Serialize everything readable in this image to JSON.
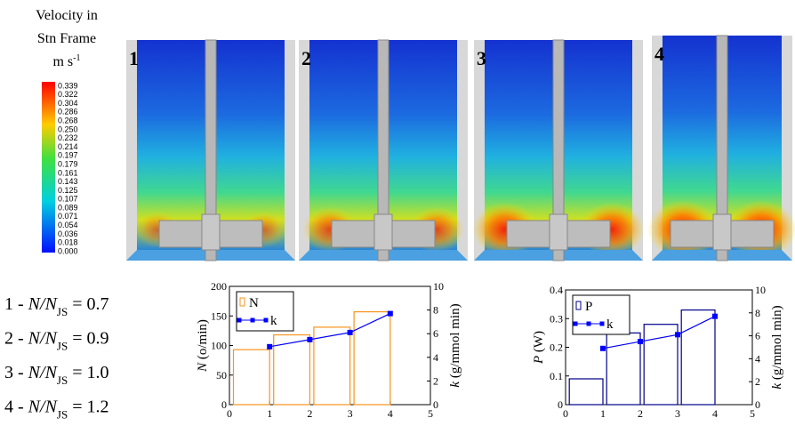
{
  "colorbar": {
    "title": [
      "Velocity in",
      "Stn Frame"
    ],
    "unit": "m s",
    "unit_exponent": "-1",
    "ticks": [
      0.339,
      0.322,
      0.304,
      0.286,
      0.268,
      {
        "value": 0.25,
        "label": "0.250"
      },
      0.232,
      0.214,
      0.197,
      0.179,
      0.161,
      0.143,
      0.125,
      0.107,
      0.089,
      0.071,
      0.054,
      0.036,
      0.018,
      {
        "value": 0,
        "label": "0.000"
      }
    ]
  },
  "panels": [
    "1",
    "2",
    "3",
    "4"
  ],
  "conditions": [
    {
      "prefix": "1 - ",
      "ratio": "N/N",
      "subscript": "JS",
      "equals": " = 0.7"
    },
    {
      "prefix": "2 - ",
      "ratio": "N/N",
      "subscript": "JS",
      "equals": " = 0.9"
    },
    {
      "prefix": "3 - ",
      "ratio": "N/N",
      "subscript": "JS",
      "equals": " = 1.0"
    },
    {
      "prefix": "4 - ",
      "ratio": "N/N",
      "subscript": "JS",
      "equals": " = 1.2"
    }
  ],
  "chart_data": [
    {
      "type": "bar",
      "ylabel_symbol": "N",
      "ylabel_unit": " (o/min)",
      "y2label_symbol": "k",
      "y2label_unit": " (g/mmol min)",
      "x": [
        1,
        2,
        3,
        4
      ],
      "series": [
        {
          "name": "N",
          "color": "#f7941d",
          "values": [
            93,
            118,
            131,
            157
          ]
        },
        {
          "name": "k",
          "color": "#0000ff",
          "type": "line",
          "axis": "y2",
          "values": [
            4.9,
            5.5,
            6.1,
            7.7
          ]
        }
      ],
      "xlim": [
        0,
        5
      ],
      "xticks": [
        0,
        1,
        2,
        3,
        4,
        5
      ],
      "ylim": [
        0,
        200
      ],
      "yticks": [
        0,
        50,
        100,
        150,
        200
      ],
      "y2lim": [
        0,
        10
      ],
      "y2ticks": [
        0,
        2,
        4,
        6,
        8,
        10
      ],
      "legend": "upper left"
    },
    {
      "type": "bar",
      "ylabel_symbol": "P",
      "ylabel_unit": " (W)",
      "y2label_symbol": "k",
      "y2label_unit": " (g/mmol min)",
      "x": [
        1,
        2,
        3,
        4
      ],
      "series": [
        {
          "name": "P",
          "color": "#00008b",
          "values": [
            0.09,
            0.25,
            0.28,
            0.33
          ]
        },
        {
          "name": "k",
          "color": "#0000ff",
          "type": "line",
          "axis": "y2",
          "values": [
            4.9,
            5.5,
            6.1,
            7.7
          ]
        }
      ],
      "xlim": [
        0,
        5
      ],
      "xticks": [
        0,
        1,
        2,
        3,
        4,
        5
      ],
      "ylim": [
        0,
        0.4
      ],
      "yticks": [
        0,
        0.1,
        0.2,
        0.3,
        0.4
      ],
      "y2lim": [
        0,
        10
      ],
      "y2ticks": [
        0,
        2,
        4,
        6,
        8,
        10
      ],
      "legend": "upper left"
    }
  ]
}
